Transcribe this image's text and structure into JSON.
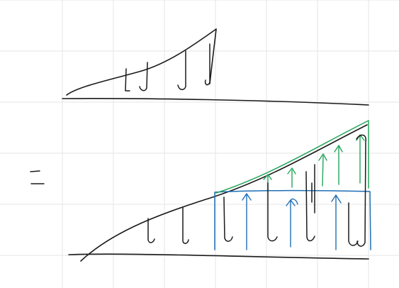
{
  "colors": {
    "background": "#ffffff",
    "grid": "#e6e6e6",
    "ink_black": "#1a1a1a",
    "ink_green": "#22a55a",
    "ink_blue": "#1f6fb3"
  },
  "equals_sign": {
    "symbol": "="
  }
}
